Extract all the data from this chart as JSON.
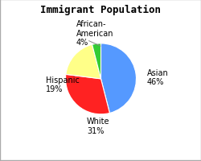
{
  "title": "Immigrant Population",
  "legend_labels": [
    "Asian",
    "White",
    "Hispanic",
    "African-American"
  ],
  "values": [
    46,
    31,
    19,
    4
  ],
  "colors": [
    "#5599ff",
    "#ff2222",
    "#ffff88",
    "#33cc33"
  ],
  "startangle": 90,
  "background_color": "#ffffff",
  "title_fontsize": 9,
  "label_fontsize": 7,
  "legend_fontsize": 6.5,
  "border_color": "#aaaaaa"
}
